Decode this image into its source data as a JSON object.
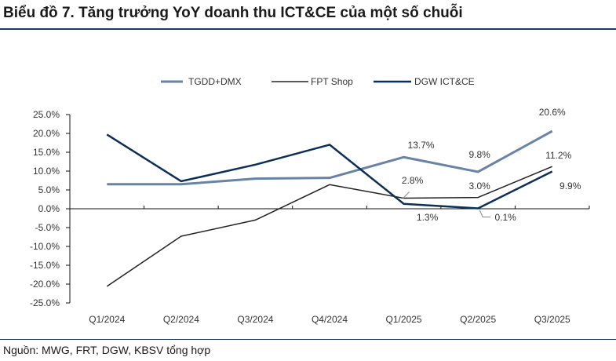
{
  "title": "Biểu đồ 7. Tăng trưởng YoY doanh thu ICT&CE của một số chuỗi",
  "source": "Nguồn: MWG, FRT, DGW, KBSV tổng hợp",
  "chart_data": {
    "type": "line",
    "categories": [
      "Q1/2024",
      "Q2/2024",
      "Q3/2024",
      "Q4/2024",
      "Q1/2025",
      "Q2/2025",
      "Q3/2025"
    ],
    "ylim": [
      -25,
      25
    ],
    "yticks": [
      -25,
      -20,
      -15,
      -10,
      -5,
      0,
      5,
      10,
      15,
      20,
      25
    ],
    "ytick_labels": [
      "-25.0%",
      "-20.0%",
      "-15.0%",
      "-10.0%",
      "-5.0%",
      "0.0%",
      "5.0%",
      "10.0%",
      "15.0%",
      "20.0%",
      "25.0%"
    ],
    "legend_position": "top",
    "series": [
      {
        "name": "TGDD+DMX",
        "color": "#6883a6",
        "values": [
          6.5,
          6.5,
          8.0,
          8.2,
          13.7,
          9.8,
          20.6
        ],
        "labels": [
          null,
          null,
          null,
          null,
          "13.7%",
          "9.8%",
          "20.6%"
        ]
      },
      {
        "name": "FPT Shop",
        "color": "#222222",
        "values": [
          -20.6,
          -7.3,
          -3.0,
          6.4,
          2.8,
          3.0,
          11.2
        ],
        "labels": [
          null,
          null,
          null,
          null,
          "2.8%",
          "3.0%",
          "11.2%"
        ]
      },
      {
        "name": "DGW ICT&CE",
        "color": "#0c2f57",
        "values": [
          19.7,
          7.3,
          11.7,
          17.0,
          1.3,
          0.1,
          9.9
        ],
        "labels": [
          null,
          null,
          null,
          null,
          "1.3%",
          "0.1%",
          "9.9%"
        ]
      }
    ]
  }
}
